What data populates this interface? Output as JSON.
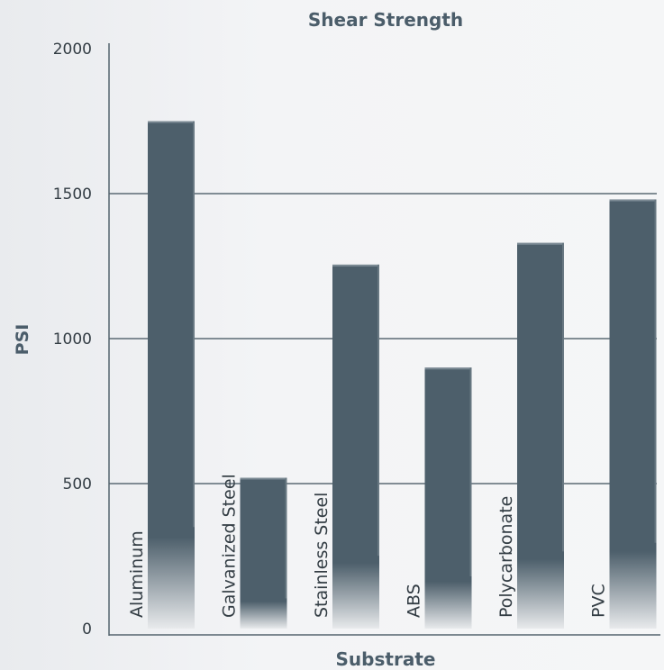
{
  "chart_data": {
    "type": "bar",
    "title": "Shear Strength",
    "xlabel": "Substrate",
    "ylabel": "PSI",
    "categories": [
      "Aluminum",
      "Galvanized Steel",
      "Stainless Steel",
      "ABS",
      "Polycarbonate",
      "PVC"
    ],
    "values": [
      1750,
      520,
      1255,
      900,
      1330,
      1480
    ],
    "ylim": [
      0,
      2000
    ],
    "yticks": [
      "0",
      "500",
      "1000",
      "1500",
      "2000"
    ],
    "grid": true,
    "legend": "none",
    "colors": {
      "bar": "#4d5f6b",
      "bar_edge": "#7b8a94",
      "axis": "#55646e",
      "text": "#4b5d6a"
    }
  }
}
